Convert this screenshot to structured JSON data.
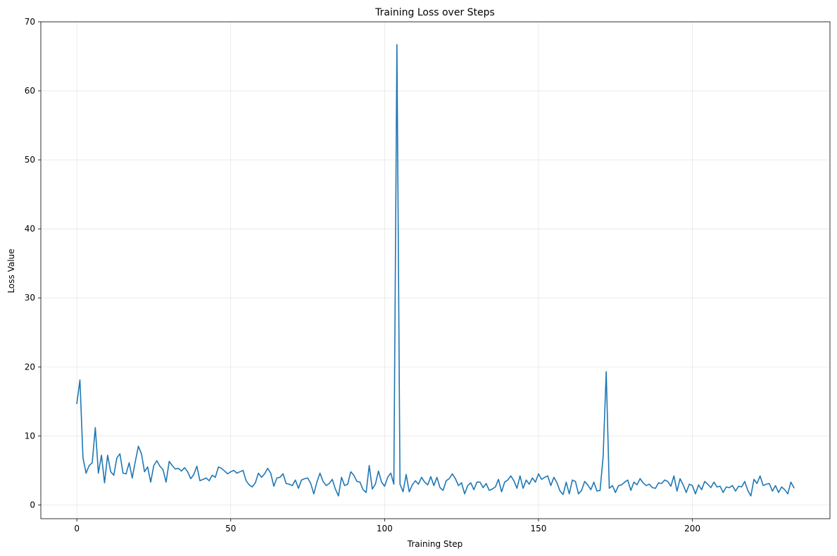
{
  "chart_data": {
    "type": "line",
    "title": "Training Loss over Steps",
    "xlabel": "Training Step",
    "ylabel": "Loss Value",
    "xlim": [
      -11.7,
      244.7
    ],
    "ylim": [
      -2,
      70
    ],
    "xticks": [
      0,
      50,
      100,
      150,
      200
    ],
    "yticks": [
      0,
      10,
      20,
      30,
      40,
      50,
      60,
      70
    ],
    "grid": true,
    "legend": "none",
    "series": [
      {
        "color": "#1f77b4",
        "y": [
          14.7,
          18.1,
          6.8,
          4.6,
          5.7,
          6.1,
          11.2,
          4.6,
          7.2,
          3.2,
          7.2,
          4.8,
          4.3,
          6.8,
          7.4,
          4.6,
          4.5,
          6.1,
          3.9,
          6.3,
          8.5,
          7.4,
          4.8,
          5.5,
          3.3,
          5.7,
          6.4,
          5.6,
          5.1,
          3.3,
          6.3,
          5.7,
          5.2,
          5.3,
          4.9,
          5.4,
          4.8,
          3.8,
          4.4,
          5.6,
          3.5,
          3.7,
          3.9,
          3.5,
          4.3,
          4.0,
          5.5,
          5.3,
          4.9,
          4.5,
          4.8,
          5.0,
          4.6,
          4.8,
          5.0,
          3.5,
          2.9,
          2.6,
          3.2,
          4.6,
          4.0,
          4.5,
          5.3,
          4.6,
          2.7,
          3.9,
          4.0,
          4.5,
          3.1,
          3.0,
          2.8,
          3.6,
          2.4,
          3.6,
          3.8,
          3.9,
          3.1,
          1.6,
          3.3,
          4.6,
          3.4,
          2.8,
          3.1,
          3.7,
          2.3,
          1.3,
          4.0,
          2.8,
          3.0,
          4.8,
          4.3,
          3.4,
          3.3,
          2.2,
          1.8,
          5.7,
          2.3,
          3.0,
          4.9,
          3.3,
          2.7,
          4.0,
          4.6,
          3.0,
          66.7,
          3.0,
          1.9,
          4.4,
          1.9,
          2.9,
          3.5,
          3.0,
          4.0,
          3.3,
          2.9,
          4.1,
          2.8,
          4.0,
          2.5,
          2.1,
          3.5,
          3.8,
          4.5,
          3.8,
          2.8,
          3.2,
          1.6,
          2.8,
          3.2,
          2.2,
          3.3,
          3.3,
          2.5,
          3.1,
          2.1,
          2.3,
          2.6,
          3.7,
          1.9,
          3.3,
          3.6,
          4.2,
          3.5,
          2.4,
          4.2,
          2.4,
          3.6,
          3.0,
          3.9,
          3.3,
          4.5,
          3.7,
          4.0,
          4.2,
          2.8,
          4.0,
          3.2,
          2.0,
          1.5,
          3.3,
          1.6,
          3.6,
          3.4,
          1.6,
          2.1,
          3.4,
          2.9,
          2.2,
          3.3,
          2.0,
          2.1,
          7.0,
          19.3,
          2.4,
          2.8,
          1.8,
          2.8,
          2.9,
          3.3,
          3.6,
          2.1,
          3.3,
          2.9,
          3.8,
          3.2,
          2.8,
          3.0,
          2.5,
          2.4,
          3.2,
          3.1,
          3.6,
          3.4,
          2.7,
          4.2,
          2.0,
          3.8,
          2.9,
          1.8,
          3.0,
          2.8,
          1.6,
          2.9,
          2.2,
          3.4,
          3.0,
          2.5,
          3.3,
          2.6,
          2.7,
          1.8,
          2.6,
          2.5,
          2.8,
          2.0,
          2.7,
          2.6,
          3.4,
          2.1,
          1.3,
          3.7,
          3.1,
          4.2,
          2.8,
          3.0,
          3.1,
          2.0,
          2.8,
          1.8,
          2.6,
          2.2,
          1.6,
          3.3,
          2.5
        ]
      }
    ]
  }
}
